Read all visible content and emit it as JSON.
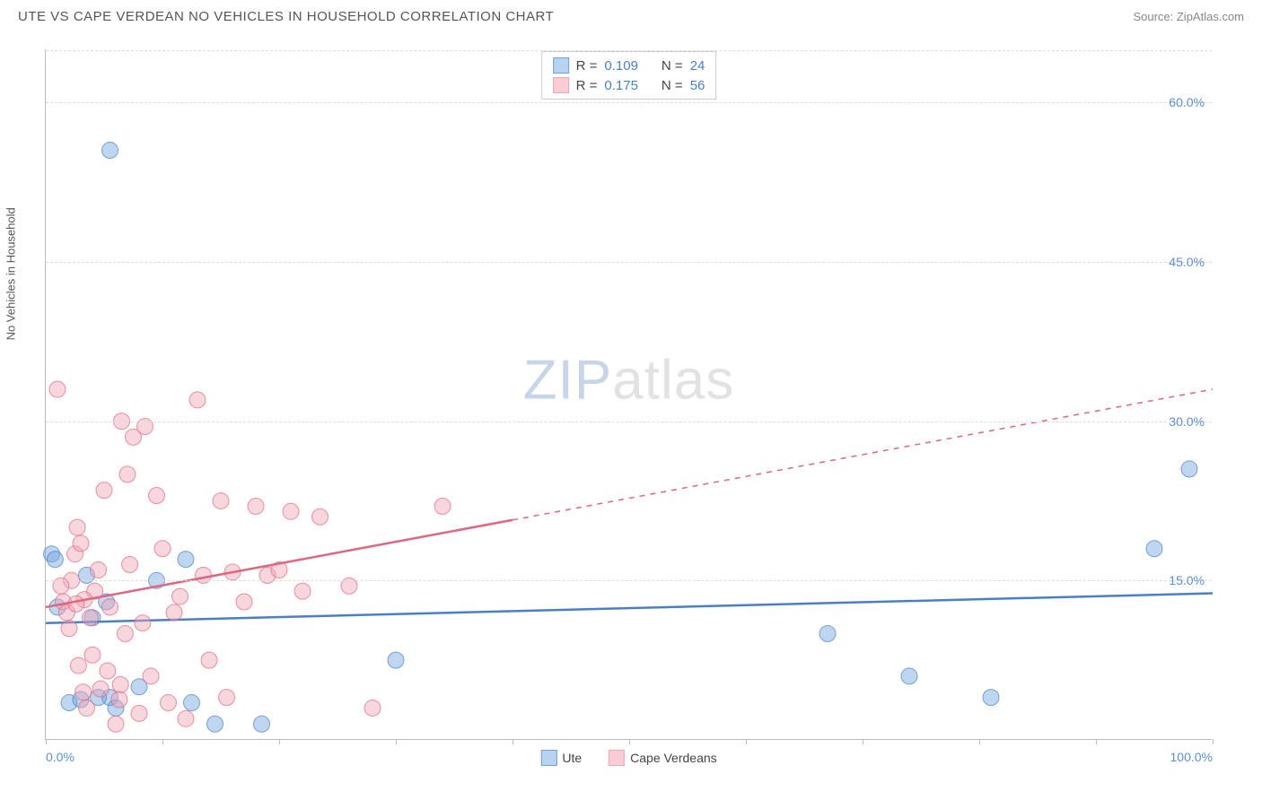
{
  "header": {
    "title": "UTE VS CAPE VERDEAN NO VEHICLES IN HOUSEHOLD CORRELATION CHART",
    "source": "Source: ZipAtlas.com"
  },
  "watermark": {
    "zip": "ZIP",
    "atlas": "atlas"
  },
  "chart": {
    "type": "scatter",
    "ylabel": "No Vehicles in Household",
    "xlim": [
      0,
      100
    ],
    "ylim": [
      0,
      65
    ],
    "background_color": "#ffffff",
    "grid_color": "#dddddd",
    "axis_color": "#bbbbbb",
    "yticks": [
      {
        "value": 15,
        "label": "15.0%"
      },
      {
        "value": 30,
        "label": "30.0%"
      },
      {
        "value": 45,
        "label": "45.0%"
      },
      {
        "value": 60,
        "label": "60.0%"
      }
    ],
    "xticks": [
      0,
      10,
      20,
      30,
      40,
      50,
      60,
      70,
      80,
      90,
      100
    ],
    "xtick_labels": [
      {
        "value": 0,
        "label": "0.0%"
      },
      {
        "value": 100,
        "label": "100.0%"
      }
    ],
    "ytick_label_color": "#5b8fd6",
    "xtick_label_color": "#5b8fd6",
    "label_fontsize": 13,
    "tick_fontsize": 14,
    "point_radius": 9,
    "point_opacity": 0.45,
    "series": [
      {
        "name": "Ute",
        "color": "#6fa3dd",
        "stroke": "#4a7fc7",
        "R": "0.109",
        "N": "24",
        "trend": {
          "x1": 0,
          "y1": 11.0,
          "x2": 100,
          "y2": 13.8,
          "solid_to_x": 100
        },
        "points": [
          [
            0.5,
            17.5
          ],
          [
            5.5,
            55.5
          ],
          [
            1.0,
            12.5
          ],
          [
            2.0,
            3.5
          ],
          [
            3.0,
            3.8
          ],
          [
            4.0,
            11.5
          ],
          [
            5.5,
            4.0
          ],
          [
            8.0,
            5.0
          ],
          [
            9.5,
            15.0
          ],
          [
            12.0,
            17.0
          ],
          [
            14.5,
            1.5
          ],
          [
            18.5,
            1.5
          ],
          [
            12.5,
            3.5
          ],
          [
            30.0,
            7.5
          ],
          [
            67.0,
            10.0
          ],
          [
            74.0,
            6.0
          ],
          [
            81.0,
            4.0
          ],
          [
            95.0,
            18.0
          ],
          [
            98.0,
            25.5
          ],
          [
            4.5,
            4.0
          ],
          [
            0.8,
            17.0
          ],
          [
            5.2,
            13.0
          ],
          [
            6.0,
            3.0
          ],
          [
            3.5,
            15.5
          ]
        ]
      },
      {
        "name": "Cape Verdeans",
        "color": "#f0a5b4",
        "stroke": "#e0657f",
        "R": "0.175",
        "N": "56",
        "trend": {
          "x1": 0,
          "y1": 12.5,
          "x2": 100,
          "y2": 33.0,
          "solid_to_x": 40
        },
        "points": [
          [
            1.0,
            33.0
          ],
          [
            1.5,
            13.0
          ],
          [
            1.8,
            12.0
          ],
          [
            2.0,
            10.5
          ],
          [
            2.2,
            15.0
          ],
          [
            2.5,
            17.5
          ],
          [
            2.7,
            20.0
          ],
          [
            2.8,
            7.0
          ],
          [
            3.0,
            18.5
          ],
          [
            3.2,
            4.5
          ],
          [
            3.5,
            3.0
          ],
          [
            3.8,
            11.5
          ],
          [
            4.0,
            8.0
          ],
          [
            4.2,
            14.0
          ],
          [
            4.5,
            16.0
          ],
          [
            5.0,
            23.5
          ],
          [
            5.5,
            12.5
          ],
          [
            6.0,
            1.5
          ],
          [
            6.3,
            3.8
          ],
          [
            6.5,
            30.0
          ],
          [
            6.8,
            10.0
          ],
          [
            7.0,
            25.0
          ],
          [
            7.2,
            16.5
          ],
          [
            7.5,
            28.5
          ],
          [
            8.0,
            2.5
          ],
          [
            8.3,
            11.0
          ],
          [
            8.5,
            29.5
          ],
          [
            9.0,
            6.0
          ],
          [
            9.5,
            23.0
          ],
          [
            10.0,
            18.0
          ],
          [
            10.5,
            3.5
          ],
          [
            11.0,
            12.0
          ],
          [
            11.5,
            13.5
          ],
          [
            12.0,
            2.0
          ],
          [
            13.0,
            32.0
          ],
          [
            13.5,
            15.5
          ],
          [
            14.0,
            7.5
          ],
          [
            15.0,
            22.5
          ],
          [
            15.5,
            4.0
          ],
          [
            16.0,
            15.8
          ],
          [
            17.0,
            13.0
          ],
          [
            18.0,
            22.0
          ],
          [
            19.0,
            15.5
          ],
          [
            20.0,
            16.0
          ],
          [
            21.0,
            21.5
          ],
          [
            22.0,
            14.0
          ],
          [
            23.5,
            21.0
          ],
          [
            26.0,
            14.5
          ],
          [
            28.0,
            3.0
          ],
          [
            34.0,
            22.0
          ],
          [
            5.3,
            6.5
          ],
          [
            4.7,
            4.8
          ],
          [
            6.4,
            5.2
          ],
          [
            3.3,
            13.2
          ],
          [
            2.6,
            12.8
          ],
          [
            1.3,
            14.5
          ]
        ]
      }
    ],
    "stat_labels": {
      "R": "R =",
      "N": "N ="
    },
    "legend": [
      {
        "label": "Ute",
        "fill": "#b9d2ef",
        "stroke": "#6fa3dd"
      },
      {
        "label": "Cape Verdeans",
        "fill": "#f8cdd6",
        "stroke": "#f0a5b4"
      }
    ]
  }
}
